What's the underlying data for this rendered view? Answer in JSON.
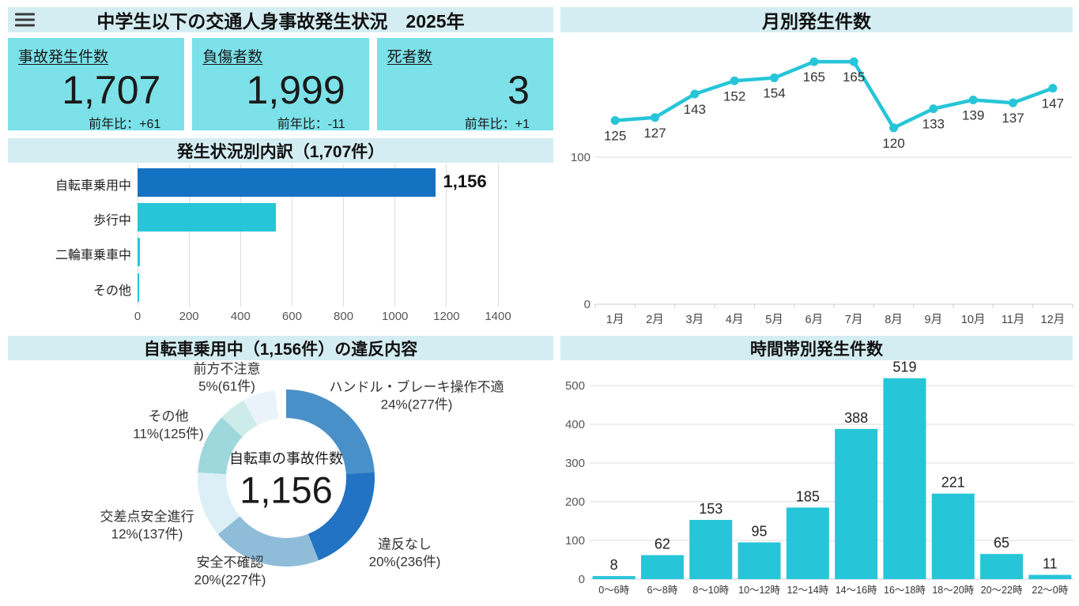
{
  "header": {
    "title": "中学生以下の交通人身事故発生状況　2025年",
    "menu_icon": "hamburger"
  },
  "stat_cards": [
    {
      "label": "事故発生件数",
      "value": "1,707",
      "yoy": "前年比：+61"
    },
    {
      "label": "負傷者数",
      "value": "1,999",
      "yoy": "前年比：-11"
    },
    {
      "label": "死者数",
      "value": "3",
      "yoy": "前年比：+1"
    }
  ],
  "colors": {
    "band_bg": "#d4edf2",
    "card_bg": "#7ce1e9",
    "accent_cyan": "#27c5d8",
    "accent_blue": "#1572c2",
    "grid_line": "#dcdcdc",
    "axis_line": "#cfcfcf",
    "text_dark": "#1a1a1a",
    "text_gray": "#555555"
  },
  "chart_data": [
    {
      "id": "breakdown",
      "type": "bar",
      "orientation": "horizontal",
      "title": "発生状況別内訳（1,707件）",
      "categories": [
        "自転車乗用中",
        "歩行中",
        "二輪車乗車中",
        "その他"
      ],
      "values": [
        1156,
        538,
        8,
        5
      ],
      "bar_colors": [
        "#1572c2",
        "#27c5d8",
        "#27c5d8",
        "#27c5d8"
      ],
      "data_labels": [
        "1,156",
        "",
        "",
        ""
      ],
      "xlim": [
        0,
        1400
      ],
      "xticks": [
        0,
        200,
        400,
        600,
        800,
        1000,
        1200,
        1400
      ],
      "grid": true
    },
    {
      "id": "monthly",
      "type": "line",
      "title": "月別発生件数",
      "categories": [
        "1月",
        "2月",
        "3月",
        "4月",
        "5月",
        "6月",
        "7月",
        "8月",
        "9月",
        "10月",
        "11月",
        "12月"
      ],
      "values": [
        125,
        127,
        143,
        152,
        154,
        165,
        165,
        120,
        133,
        139,
        137,
        147
      ],
      "ylim": [
        0,
        175
      ],
      "yticks": [
        0,
        100
      ],
      "line_color": "#27c5d8",
      "markers": true,
      "data_labels": true,
      "grid": true
    },
    {
      "id": "violations",
      "type": "donut",
      "title": "自転車乗用中（1,156件）の違反内容",
      "center_label": "自転車の事故件数",
      "center_value": "1,156",
      "slices": [
        {
          "label": "ハンドル・ブレーキ操作不適",
          "pct": 24,
          "count": 277,
          "display": "24%(277件)",
          "color": "#4a90c8"
        },
        {
          "label": "違反なし",
          "pct": 20,
          "count": 236,
          "display": "20%(236件)",
          "color": "#2273c3"
        },
        {
          "label": "安全不確認",
          "pct": 20,
          "count": 227,
          "display": "20%(227件)",
          "color": "#8fbdd9"
        },
        {
          "label": "交差点安全進行",
          "pct": 12,
          "count": 137,
          "display": "12%(137件)",
          "color": "#dceff7"
        },
        {
          "label": "その他",
          "pct": 11,
          "count": 125,
          "display": "11%(125件)",
          "color": "#9ed8dc"
        },
        {
          "label": "前方不注意",
          "pct": 5,
          "count": 61,
          "display": "5%(61件)",
          "color": "#cdebe9"
        },
        {
          "label": "",
          "pct": 6,
          "display": "",
          "color": "#eaf3fa"
        },
        {
          "label": "",
          "pct": 2,
          "display": "",
          "color": "#ffffff"
        }
      ]
    },
    {
      "id": "hourly",
      "type": "bar",
      "orientation": "vertical",
      "title": "時間帯別発生件数",
      "categories": [
        "0〜6時",
        "6〜8時",
        "8〜10時",
        "10〜12時",
        "12〜14時",
        "14〜16時",
        "16〜18時",
        "18〜20時",
        "20〜22時",
        "22〜0時"
      ],
      "values": [
        8,
        62,
        153,
        95,
        185,
        388,
        519,
        221,
        65,
        11
      ],
      "bar_color": "#27c5d8",
      "ylim": [
        0,
        550
      ],
      "yticks": [
        0,
        100,
        200,
        300,
        400,
        500
      ],
      "grid": true
    }
  ]
}
